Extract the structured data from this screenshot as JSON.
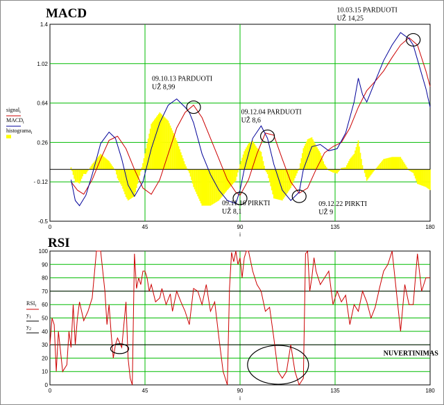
{
  "chart_data": [
    {
      "type": "line",
      "title": "MACD",
      "xlabel": "i",
      "xlim": [
        0,
        180
      ],
      "ylim": [
        -0.5,
        1.4
      ],
      "xticks": [
        0,
        45,
        90,
        135,
        180
      ],
      "yticks": [
        -0.5,
        -0.12,
        0.26,
        0.64,
        1.02,
        1.4
      ],
      "ytick_labels": [
        "-0.5",
        "- 0.12",
        "0.26",
        "0.64",
        "1.02",
        "1.4"
      ],
      "zero_line": 0,
      "grid": true,
      "legend": [
        "signal_i",
        "MACD_i",
        "histograma_i"
      ],
      "colors": {
        "signal": "#cc0000",
        "macd": "#000099",
        "histogram": "#ffff00",
        "grid": "#00bb00",
        "zero": "#000000"
      },
      "series": [
        {
          "name": "signal",
          "x": [
            10,
            13,
            16,
            20,
            24,
            28,
            32,
            36,
            40,
            44,
            48,
            52,
            56,
            60,
            64,
            68,
            72,
            76,
            80,
            84,
            88,
            90,
            94,
            98,
            102,
            106,
            110,
            114,
            118,
            122,
            126,
            130,
            134,
            138,
            142,
            146,
            150,
            154,
            158,
            162,
            166,
            170,
            174,
            178,
            180
          ],
          "y": [
            -0.12,
            -0.2,
            -0.24,
            -0.1,
            0.1,
            0.28,
            0.32,
            0.2,
            0.0,
            -0.18,
            -0.24,
            -0.1,
            0.15,
            0.4,
            0.55,
            0.62,
            0.5,
            0.3,
            0.1,
            -0.1,
            -0.22,
            -0.25,
            -0.1,
            0.15,
            0.35,
            0.33,
            0.1,
            -0.12,
            -0.23,
            -0.18,
            0.0,
            0.16,
            0.22,
            0.26,
            0.4,
            0.6,
            0.76,
            0.85,
            0.95,
            1.08,
            1.2,
            1.27,
            1.2,
            0.95,
            0.8
          ]
        },
        {
          "name": "MACD",
          "x": [
            10,
            12,
            14,
            17,
            20,
            24,
            28,
            31,
            34,
            37,
            40,
            44,
            48,
            52,
            56,
            60,
            64,
            66,
            68,
            70,
            72,
            76,
            80,
            84,
            88,
            90,
            92,
            96,
            100,
            103,
            106,
            110,
            114,
            118,
            120,
            124,
            128,
            132,
            136,
            140,
            144,
            146,
            148,
            150,
            154,
            158,
            162,
            166,
            170,
            172,
            174,
            178,
            180
          ],
          "y": [
            -0.1,
            -0.3,
            -0.35,
            -0.25,
            -0.05,
            0.25,
            0.36,
            0.3,
            0.1,
            -0.15,
            -0.26,
            -0.12,
            0.2,
            0.45,
            0.62,
            0.68,
            0.6,
            0.55,
            0.45,
            0.3,
            0.15,
            -0.05,
            -0.2,
            -0.3,
            -0.33,
            -0.2,
            0.0,
            0.3,
            0.42,
            0.3,
            0.05,
            -0.2,
            -0.3,
            -0.22,
            0.0,
            0.22,
            0.24,
            0.18,
            0.2,
            0.35,
            0.65,
            0.88,
            0.72,
            0.65,
            0.85,
            1.05,
            1.2,
            1.32,
            1.26,
            1.2,
            1.06,
            0.78,
            0.6
          ]
        }
      ],
      "annotations": [
        {
          "lines": [
            "09.10.13 PARDUOTI",
            "UŽ 8,99"
          ],
          "x": 68,
          "y": 0.6
        },
        {
          "lines": [
            "09.11.16 PIRKTI",
            "UŽ 8,1"
          ],
          "x": 90,
          "y": -0.28
        },
        {
          "lines": [
            "09.12.04 PARDUOTI",
            "UŽ 8,6"
          ],
          "x": 103,
          "y": 0.32
        },
        {
          "lines": [
            "09.12.22 PIRKTI",
            "UŽ 9"
          ],
          "x": 118,
          "y": -0.26
        },
        {
          "lines": [
            "10.03.15 PARDUOTI",
            "UŽ 14,25"
          ],
          "x": 172,
          "y": 1.25
        }
      ]
    },
    {
      "type": "line",
      "title": "RSI",
      "xlabel": "i",
      "xlim": [
        0,
        180
      ],
      "ylim": [
        0,
        100
      ],
      "xticks": [
        0,
        45,
        90,
        135,
        180
      ],
      "yticks": [
        0,
        10,
        20,
        30,
        40,
        50,
        60,
        70,
        80,
        90,
        100
      ],
      "hlines": [
        30,
        70
      ],
      "grid": true,
      "legend": [
        "RSI_i",
        "y_1",
        "y_2"
      ],
      "colors": {
        "rsi": "#cc0000",
        "grid": "#00bb00",
        "hline": "#000000"
      },
      "series": [
        {
          "name": "RSI",
          "x": [
            0,
            1,
            2,
            3,
            4,
            6,
            8,
            9,
            10,
            11,
            12,
            13,
            14,
            16,
            18,
            20,
            22,
            24,
            26,
            27,
            28,
            29,
            30,
            31,
            32,
            34,
            36,
            37,
            38,
            39,
            40,
            41,
            42,
            43,
            44,
            45,
            46,
            47,
            48,
            50,
            52,
            53,
            55,
            57,
            58,
            60,
            62,
            64,
            66,
            68,
            70,
            72,
            74,
            76,
            78,
            80,
            82,
            83,
            84,
            85,
            86,
            87,
            88,
            89,
            90,
            91,
            92,
            93,
            94,
            96,
            98,
            100,
            102,
            104,
            106,
            108,
            110,
            112,
            114,
            116,
            118,
            120,
            121,
            122,
            123,
            124,
            125,
            126,
            128,
            130,
            132,
            134,
            136,
            138,
            140,
            142,
            144,
            146,
            148,
            150,
            152,
            154,
            156,
            158,
            160,
            162,
            164,
            166,
            168,
            170,
            172,
            174,
            176,
            178,
            180
          ],
          "y": [
            30,
            50,
            45,
            10,
            40,
            10,
            15,
            40,
            28,
            60,
            30,
            50,
            62,
            48,
            55,
            65,
            100,
            100,
            70,
            45,
            60,
            38,
            20,
            30,
            35,
            28,
            62,
            20,
            5,
            0,
            98,
            72,
            80,
            75,
            85,
            85,
            80,
            70,
            75,
            62,
            65,
            72,
            60,
            68,
            55,
            70,
            62,
            55,
            45,
            72,
            70,
            60,
            75,
            55,
            62,
            35,
            10,
            5,
            0,
            72,
            99,
            92,
            100,
            90,
            95,
            80,
            95,
            100,
            100,
            85,
            75,
            70,
            55,
            58,
            35,
            10,
            5,
            10,
            30,
            10,
            0,
            5,
            98,
            100,
            70,
            80,
            95,
            85,
            75,
            80,
            85,
            60,
            70,
            62,
            67,
            45,
            60,
            55,
            70,
            62,
            50,
            58,
            72,
            85,
            90,
            100,
            70,
            40,
            75,
            60,
            60,
            98,
            70,
            80,
            80
          ]
        }
      ],
      "annotations": [
        {
          "text": "NUVERTINIMAS",
          "x": 150,
          "y": 20
        }
      ]
    }
  ]
}
